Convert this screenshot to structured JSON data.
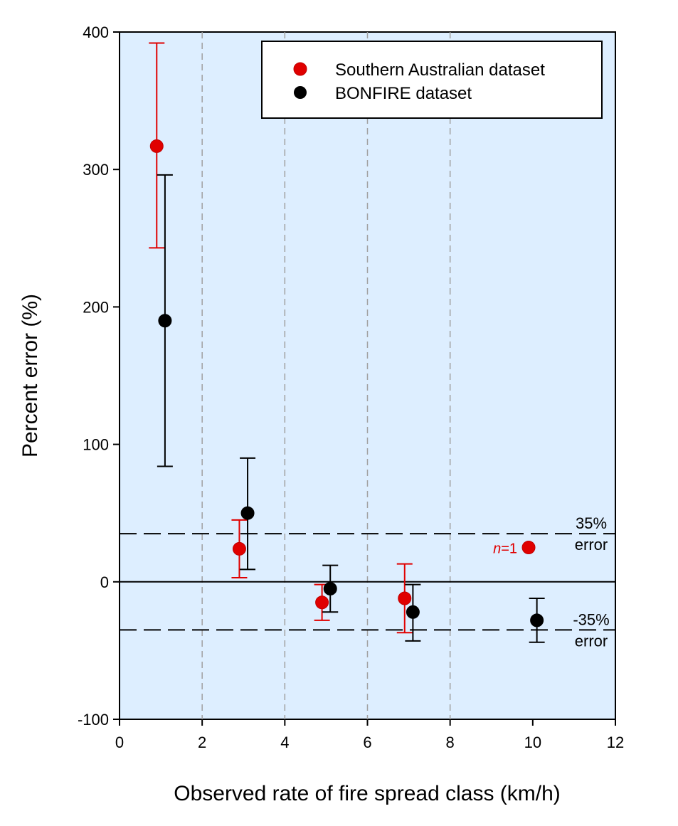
{
  "chart_data": {
    "type": "scatter",
    "xlabel": "Observed rate of fire spread class (km/h)",
    "ylabel": "Percent error (%)",
    "xlim": [
      0,
      12
    ],
    "ylim": [
      -100,
      400
    ],
    "x_ticks": [
      "0",
      "2",
      "4",
      "6",
      "8",
      "10",
      "12"
    ],
    "y_ticks": [
      "-100",
      "0",
      "100",
      "200",
      "300",
      "400"
    ],
    "x_tick_values": [
      0,
      2,
      4,
      6,
      8,
      10,
      12
    ],
    "y_tick_values": [
      -100,
      0,
      100,
      200,
      300,
      400
    ],
    "class_boundaries": [
      2,
      4,
      6,
      8
    ],
    "grid": "vertical dashed at class boundaries",
    "legend_position": "top-right",
    "series": [
      {
        "name": "Southern Australian dataset",
        "color": "#e00000",
        "points": [
          {
            "x": 0.9,
            "y": 317,
            "err_low": 243,
            "err_high": 392
          },
          {
            "x": 2.9,
            "y": 24,
            "err_low": 3,
            "err_high": 45
          },
          {
            "x": 4.9,
            "y": -15,
            "err_low": -28,
            "err_high": -2
          },
          {
            "x": 6.9,
            "y": -12,
            "err_low": -37,
            "err_high": 13
          },
          {
            "x": 9.9,
            "y": 25
          }
        ]
      },
      {
        "name": "BONFIRE dataset",
        "color": "#000000",
        "points": [
          {
            "x": 1.1,
            "y": 190,
            "err_low": 84,
            "err_high": 296
          },
          {
            "x": 3.1,
            "y": 50,
            "err_low": 9,
            "err_high": 90
          },
          {
            "x": 5.1,
            "y": -5,
            "err_low": -22,
            "err_high": 12
          },
          {
            "x": 7.1,
            "y": -22,
            "err_low": -43,
            "err_high": -2
          },
          {
            "x": 10.1,
            "y": -28,
            "err_low": -44,
            "err_high": -12
          }
        ]
      }
    ],
    "reference_lines": [
      {
        "y": 35,
        "label_top": "35%",
        "label_bottom": "error"
      },
      {
        "y": -35,
        "label_top": "-35%",
        "label_bottom": "error"
      },
      {
        "y": 0
      }
    ],
    "annotations": [
      {
        "text_italic": "n",
        "text_rest": "=1",
        "x": 9.9,
        "y": 25
      }
    ]
  },
  "colors": {
    "plot_background": "#ddeeff",
    "southern_australian": "#e00000",
    "bonfire": "#000000",
    "grid": "#a0a0a0"
  }
}
